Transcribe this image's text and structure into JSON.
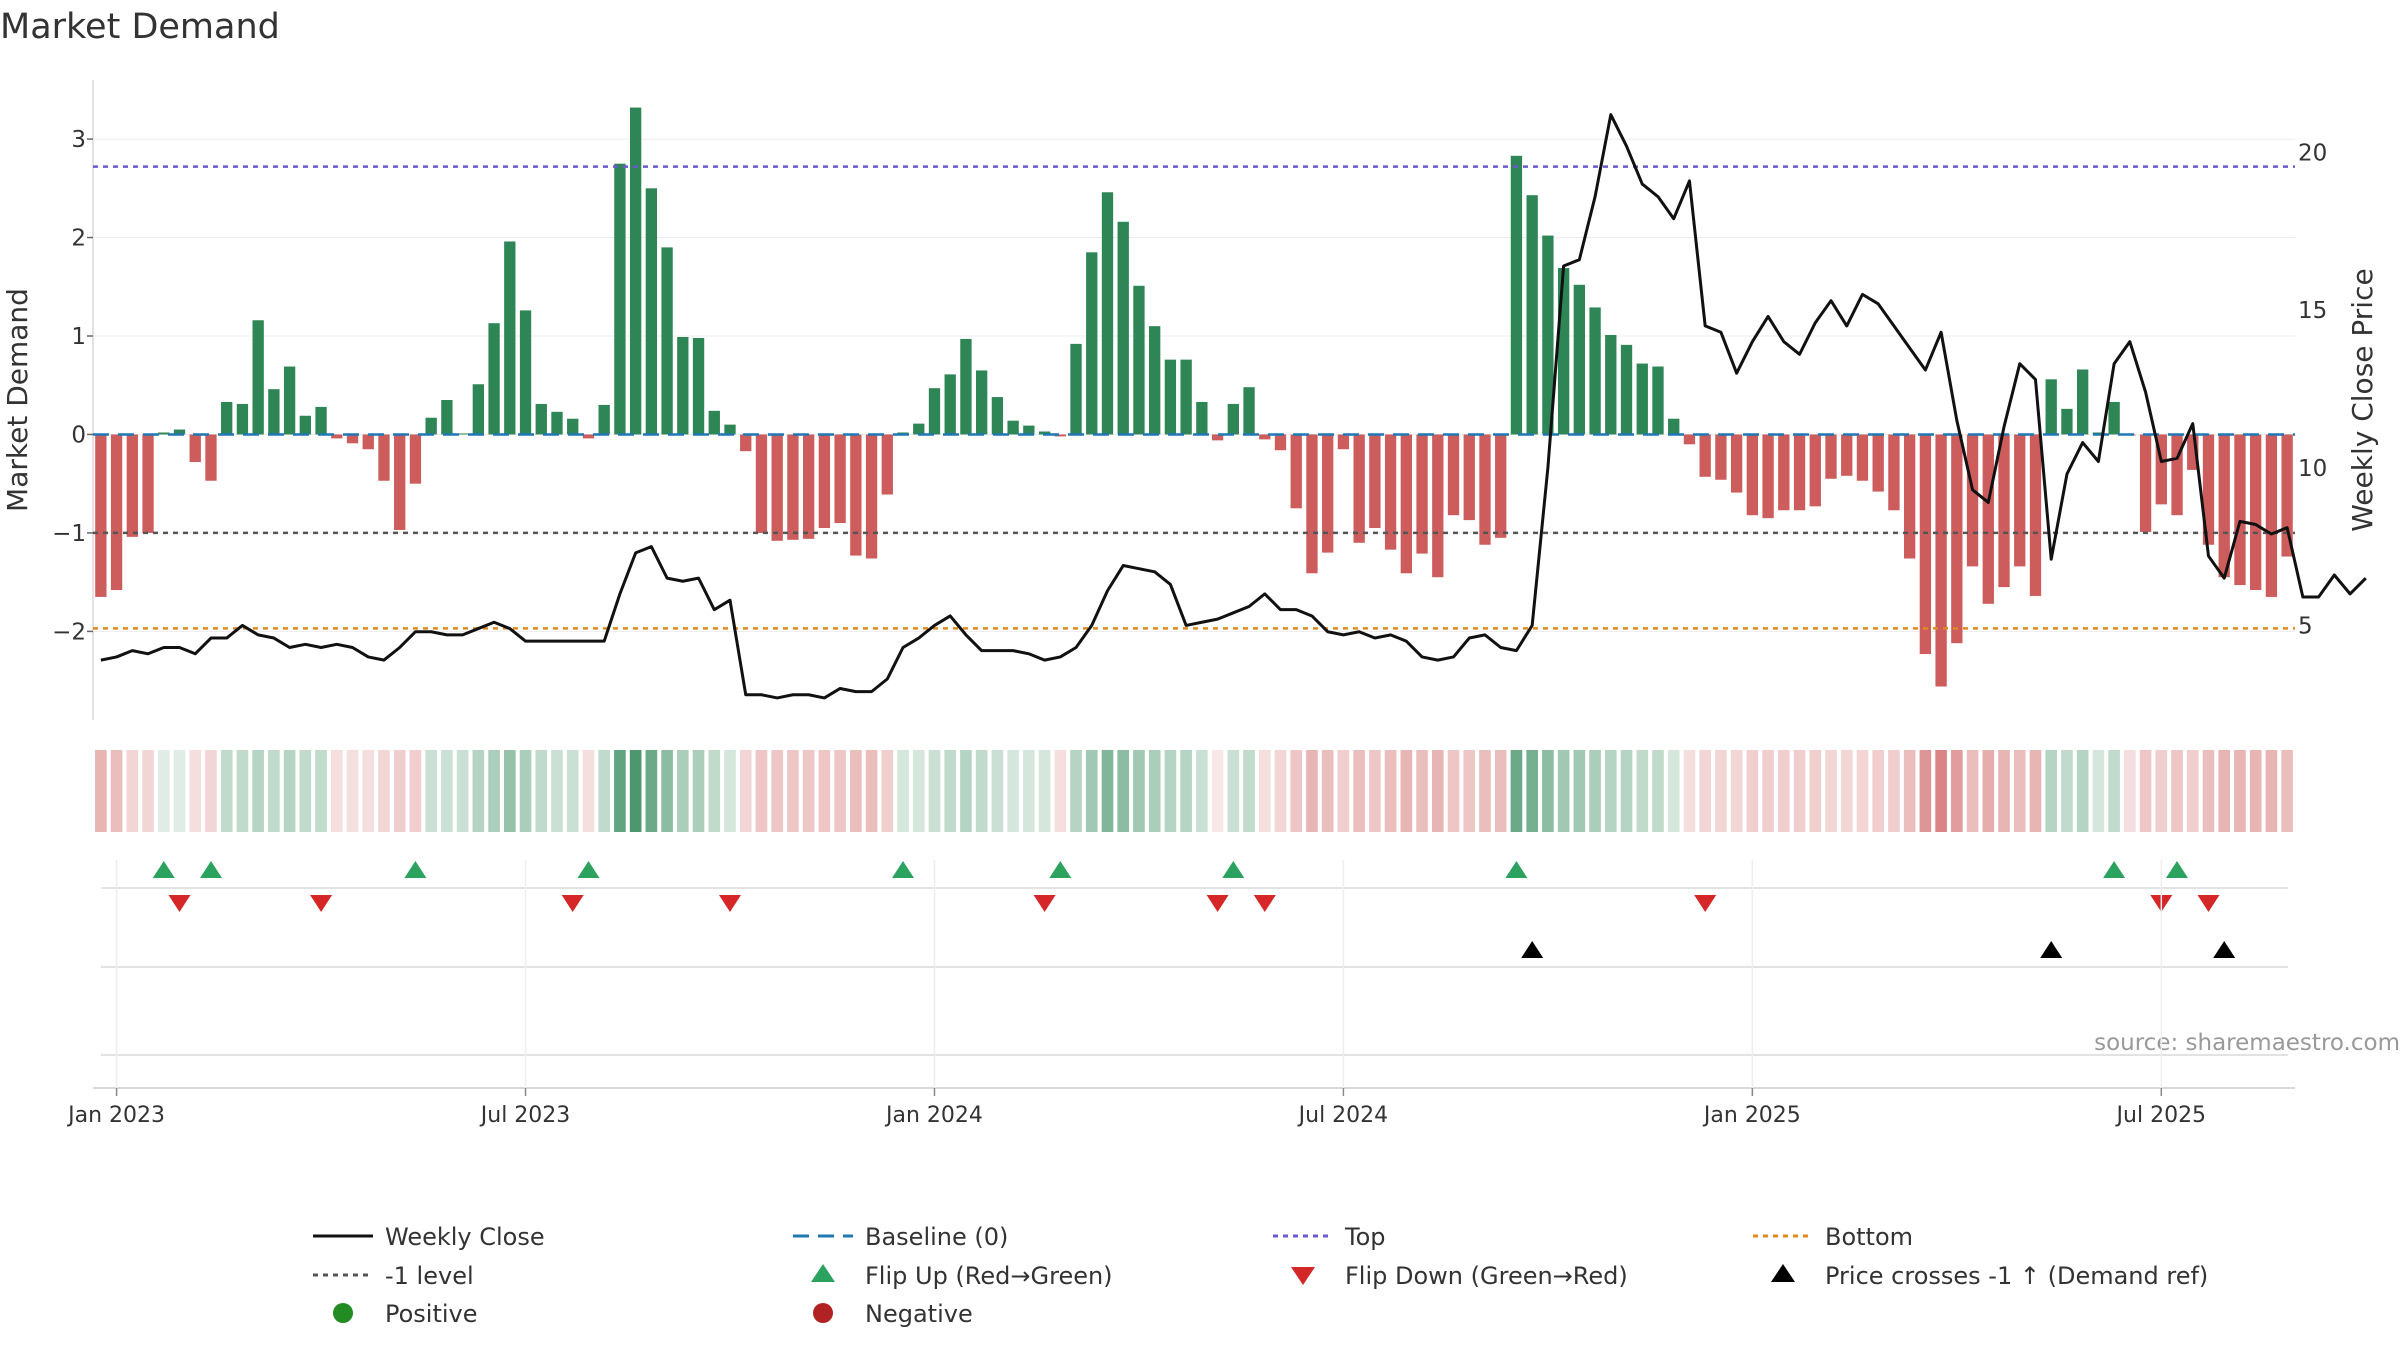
{
  "title": "Market Demand",
  "source": "source: sharemaestro.com",
  "axes": {
    "ylabel_left": "Market Demand",
    "ylabel_right": "Weekly Close Price",
    "left_ticks": [
      3,
      2,
      1,
      0,
      -1,
      -2
    ],
    "left_tick_labels": [
      "3",
      "2",
      "1",
      "0",
      "−1",
      "−2"
    ],
    "right_ticks": [
      20,
      15,
      10,
      5
    ],
    "right_tick_labels": [
      "20",
      "15",
      "10",
      "5"
    ],
    "x_tick_labels": [
      "Jan 2023",
      "Jul 2023",
      "Jan 2024",
      "Jul 2024",
      "Jan 2025",
      "Jul 2025"
    ]
  },
  "legend": {
    "close": "Weekly Close",
    "baseline": "Baseline (0)",
    "top": "Top",
    "bottom": "Bottom",
    "neg1": "-1 level",
    "flip_up": "Flip Up (Red→Green)",
    "flip_down": "Flip Down (Green→Red)",
    "cross": "Price crosses -1 ↑ (Demand ref)",
    "positive": "Positive",
    "negative": "Negative"
  },
  "colors": {
    "positive": "#2e8555",
    "negative": "#cd5c5c",
    "close": "#111111",
    "baseline": "#1f77b4",
    "top": "#6a5acd",
    "bottom": "#e08a1e",
    "neg1": "#555555",
    "flip_up": "#2ca25f",
    "flip_down": "#d62728",
    "cross": "#000000",
    "legend_positive": "#228b22",
    "legend_negative": "#b22222"
  },
  "chart_data": {
    "type": "bar",
    "title": "Market Demand",
    "xlabel": "",
    "ylabel": "Market Demand",
    "y2label": "Weekly Close Price",
    "ylim": [
      -2.9,
      3.6
    ],
    "y2lim": [
      2,
      22.3
    ],
    "x_start_week": 0,
    "weeks_per_year": 52,
    "levels": {
      "baseline": 0,
      "top": 2.72,
      "neg1": -1.0,
      "bottom": -1.97
    },
    "demand": [
      -1.65,
      -1.58,
      -1.04,
      -1.0,
      0.02,
      0.05,
      -0.28,
      -0.47,
      0.33,
      0.31,
      1.16,
      0.46,
      0.69,
      0.19,
      0.28,
      -0.04,
      -0.09,
      -0.15,
      -0.47,
      -0.97,
      -0.5,
      0.17,
      0.35,
      0.01,
      0.51,
      1.13,
      1.96,
      1.26,
      0.31,
      0.23,
      0.16,
      -0.04,
      0.3,
      2.75,
      3.32,
      2.5,
      1.9,
      0.99,
      0.98,
      0.24,
      0.1,
      -0.17,
      -1.0,
      -1.08,
      -1.07,
      -1.06,
      -0.95,
      -0.9,
      -1.23,
      -1.26,
      -0.61,
      0.02,
      0.11,
      0.47,
      0.61,
      0.97,
      0.65,
      0.38,
      0.14,
      0.09,
      0.03,
      -0.02,
      0.92,
      1.85,
      2.46,
      2.16,
      1.51,
      1.1,
      0.76,
      0.76,
      0.33,
      -0.06,
      0.31,
      0.48,
      -0.05,
      -0.16,
      -0.75,
      -1.41,
      -1.2,
      -0.15,
      -1.1,
      -0.95,
      -1.17,
      -1.41,
      -1.21,
      -1.45,
      -0.82,
      -0.87,
      -1.12,
      -1.05,
      2.83,
      2.43,
      2.02,
      1.69,
      1.52,
      1.29,
      1.01,
      0.91,
      0.72,
      0.69,
      0.16,
      -0.1,
      -0.43,
      -0.46,
      -0.59,
      -0.82,
      -0.85,
      -0.77,
      -0.77,
      -0.73,
      -0.45,
      -0.42,
      -0.47,
      -0.58,
      -0.77,
      -1.26,
      -2.23,
      -2.56,
      -2.12,
      -1.34,
      -1.72,
      -1.55,
      -1.34,
      -1.64,
      0.56,
      0.26,
      0.66,
      0.02,
      0.33,
      -0.01,
      -0.99,
      -0.71,
      -0.82,
      -0.36,
      -1.12,
      -1.45,
      -1.53,
      -1.58,
      -1.65,
      -1.24
    ],
    "close": [
      3.9,
      4.0,
      4.2,
      4.1,
      4.3,
      4.3,
      4.1,
      4.6,
      4.6,
      5.0,
      4.7,
      4.6,
      4.3,
      4.4,
      4.3,
      4.4,
      4.3,
      4.0,
      3.9,
      4.3,
      4.8,
      4.8,
      4.7,
      4.7,
      4.9,
      5.1,
      4.9,
      4.5,
      4.5,
      4.5,
      4.5,
      4.5,
      4.5,
      6.0,
      7.3,
      7.5,
      6.5,
      6.4,
      6.5,
      5.5,
      5.8,
      2.8,
      2.8,
      2.7,
      2.8,
      2.8,
      2.7,
      3.0,
      2.9,
      2.9,
      3.3,
      4.3,
      4.6,
      5.0,
      5.3,
      4.7,
      4.2,
      4.2,
      4.2,
      4.1,
      3.9,
      4.0,
      4.3,
      5.0,
      6.1,
      6.9,
      6.8,
      6.7,
      6.3,
      5.0,
      5.1,
      5.2,
      5.4,
      5.6,
      6.0,
      5.5,
      5.5,
      5.3,
      4.8,
      4.7,
      4.8,
      4.6,
      4.7,
      4.5,
      4.0,
      3.9,
      4.0,
      4.6,
      4.7,
      4.3,
      4.2,
      5.0,
      10.0,
      16.4,
      16.6,
      18.6,
      21.2,
      20.2,
      19.0,
      18.6,
      17.9,
      19.1,
      14.5,
      14.3,
      13.0,
      14.0,
      14.8,
      14.0,
      13.6,
      14.6,
      15.3,
      14.5,
      15.5,
      15.2,
      14.5,
      13.8,
      13.1,
      14.3,
      11.5,
      9.3,
      8.9,
      11.3,
      13.3,
      12.8,
      7.1,
      9.8,
      10.8,
      10.2,
      13.3,
      14.0,
      12.4,
      10.2,
      10.3,
      11.4,
      7.2,
      6.5,
      8.3,
      8.2,
      7.9,
      8.1,
      5.9,
      5.9,
      6.6,
      6.0,
      6.5
    ],
    "heat_strength": [
      0.45,
      0.4,
      0.25,
      0.25,
      0.15,
      0.15,
      0.2,
      0.25,
      0.3,
      0.3,
      0.35,
      0.3,
      0.35,
      0.3,
      0.3,
      0.2,
      0.2,
      0.2,
      0.25,
      0.3,
      0.3,
      0.25,
      0.25,
      0.25,
      0.35,
      0.4,
      0.5,
      0.4,
      0.3,
      0.25,
      0.25,
      0.2,
      0.3,
      0.75,
      0.85,
      0.7,
      0.55,
      0.4,
      0.4,
      0.3,
      0.2,
      0.25,
      0.35,
      0.35,
      0.35,
      0.35,
      0.35,
      0.35,
      0.4,
      0.4,
      0.3,
      0.2,
      0.2,
      0.25,
      0.3,
      0.35,
      0.3,
      0.25,
      0.2,
      0.2,
      0.2,
      0.2,
      0.35,
      0.45,
      0.6,
      0.55,
      0.45,
      0.4,
      0.35,
      0.35,
      0.25,
      0.15,
      0.25,
      0.3,
      0.2,
      0.25,
      0.35,
      0.45,
      0.4,
      0.3,
      0.4,
      0.35,
      0.4,
      0.45,
      0.4,
      0.45,
      0.35,
      0.35,
      0.4,
      0.4,
      0.7,
      0.65,
      0.55,
      0.45,
      0.45,
      0.4,
      0.35,
      0.35,
      0.3,
      0.3,
      0.2,
      0.2,
      0.25,
      0.25,
      0.25,
      0.3,
      0.3,
      0.3,
      0.3,
      0.3,
      0.25,
      0.25,
      0.25,
      0.3,
      0.3,
      0.4,
      0.65,
      0.75,
      0.6,
      0.4,
      0.5,
      0.45,
      0.4,
      0.45,
      0.35,
      0.3,
      0.35,
      0.2,
      0.3,
      0.2,
      0.35,
      0.3,
      0.35,
      0.3,
      0.4,
      0.45,
      0.45,
      0.45,
      0.45,
      0.4
    ],
    "flip_up_weeks": [
      4,
      7,
      20,
      31,
      51,
      61,
      72,
      90,
      128,
      132
    ],
    "flip_down_weeks": [
      5,
      14,
      30,
      40,
      60,
      71,
      74,
      102,
      131,
      134
    ],
    "cross_weeks": [
      91,
      124,
      135
    ],
    "x_ticks": [
      {
        "week": 1.5,
        "label": "Jan 2023"
      },
      {
        "week": 27.5,
        "label": "Jul 2023"
      },
      {
        "week": 53.5,
        "label": "Jan 2024"
      },
      {
        "week": 79.5,
        "label": "Jul 2024"
      },
      {
        "week": 105.5,
        "label": "Jan 2025"
      },
      {
        "week": 131.5,
        "label": "Jul 2025"
      }
    ]
  }
}
